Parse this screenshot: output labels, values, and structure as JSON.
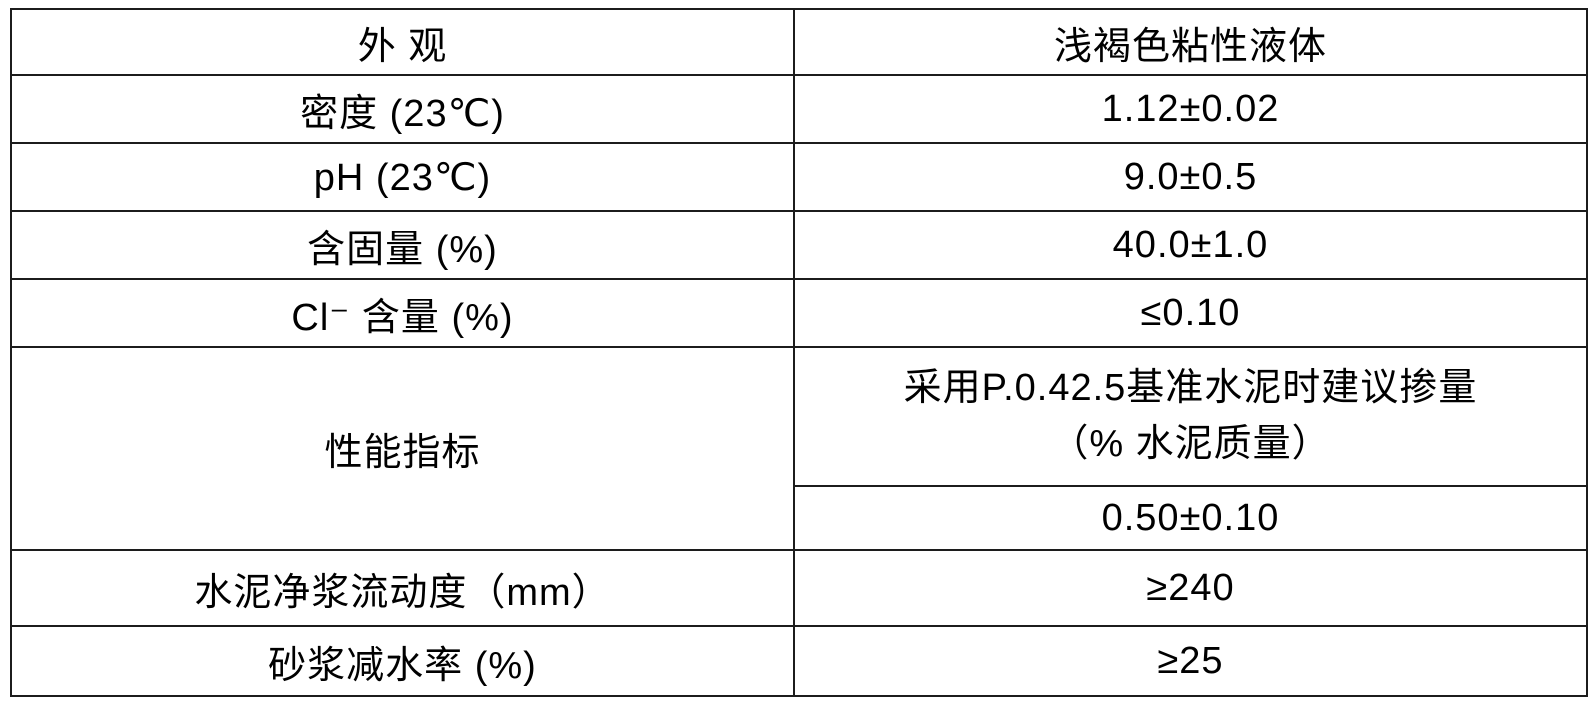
{
  "colors": {
    "border": "#1c1c1c",
    "text": "#000000",
    "background": "#ffffff"
  },
  "table": {
    "rows": [
      {
        "id": "appearance",
        "label": "外 观",
        "value": "浅褐色粘性液体"
      },
      {
        "id": "density",
        "label": "密度 (23℃)",
        "value": "1.12±0.02"
      },
      {
        "id": "ph",
        "label": "pH (23℃)",
        "value": "9.0±0.5"
      },
      {
        "id": "solid-content",
        "label": "含固量 (%)",
        "value": "40.0±1.0"
      },
      {
        "id": "chloride-content",
        "label": "Cl⁻ 含量 (%)",
        "value": "≤0.10"
      },
      {
        "id": "performance-index",
        "label": "性能指标",
        "value_heading_line1": "采用P.0.42.5基准水泥时建议掺量",
        "value_heading_line2": "（% 水泥质量）",
        "value": "0.50±0.10"
      },
      {
        "id": "paste-fluidity",
        "label": "水泥净浆流动度（mm）",
        "value": "≥240"
      },
      {
        "id": "mortar-water-reducing",
        "label": "砂浆减水率 (%)",
        "value": "≥25"
      }
    ]
  }
}
